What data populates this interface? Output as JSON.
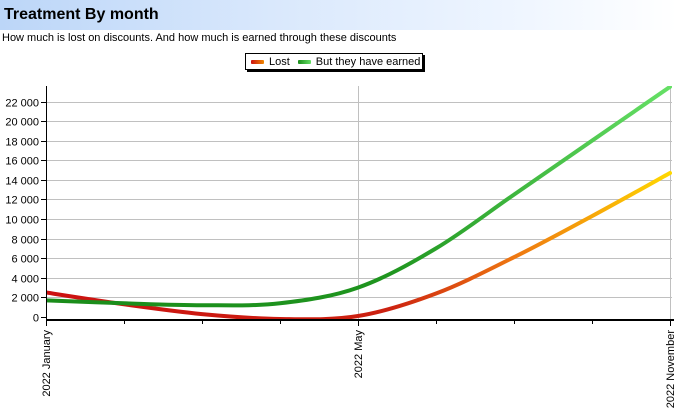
{
  "header": {
    "title": "Treatment By month",
    "subtitle": "How much is lost on discounts. And how much is earned through these discounts"
  },
  "colors": {
    "lost_start": "#cc1111",
    "lost_mid": "#ee6611",
    "lost_end": "#ffd700",
    "earned_start": "#1a8c1a",
    "earned_mid": "#2ea82e",
    "earned_end": "#66e066",
    "grid": "#c0c0c0",
    "axis": "#000000"
  },
  "chart_data": {
    "type": "line",
    "title": "Treatment By month",
    "subtitle": "How much is lost on discounts. And how much is earned through these discounts",
    "xlabel": "",
    "ylabel": "",
    "x_ticks": [
      "2022 January",
      "2022 May",
      "2022 November"
    ],
    "x_tick_positions": [
      0,
      4,
      8
    ],
    "x_range": [
      0,
      8
    ],
    "y_ticks": [
      0,
      2000,
      4000,
      6000,
      8000,
      10000,
      12000,
      14000,
      16000,
      18000,
      20000,
      22000
    ],
    "y_tick_labels": [
      "0",
      "2 000",
      "4 000",
      "6 000",
      "8 000",
      "10 000",
      "12 000",
      "14 000",
      "16 000",
      "18 000",
      "20 000",
      "22 000"
    ],
    "ylim": [
      0,
      23500
    ],
    "grid": true,
    "legend_position": "top-center",
    "series": [
      {
        "name": "Lost",
        "x": [
          0,
          1,
          2,
          3,
          4,
          5,
          6,
          7,
          8
        ],
        "values": [
          2500,
          1300,
          300,
          -200,
          100,
          2400,
          6100,
          10300,
          14700
        ]
      },
      {
        "name": "But they have earned",
        "x": [
          0,
          1,
          2,
          3,
          4,
          5,
          6,
          7,
          8
        ],
        "values": [
          1700,
          1400,
          1200,
          1400,
          3000,
          7000,
          12500,
          18000,
          23500
        ]
      }
    ]
  }
}
